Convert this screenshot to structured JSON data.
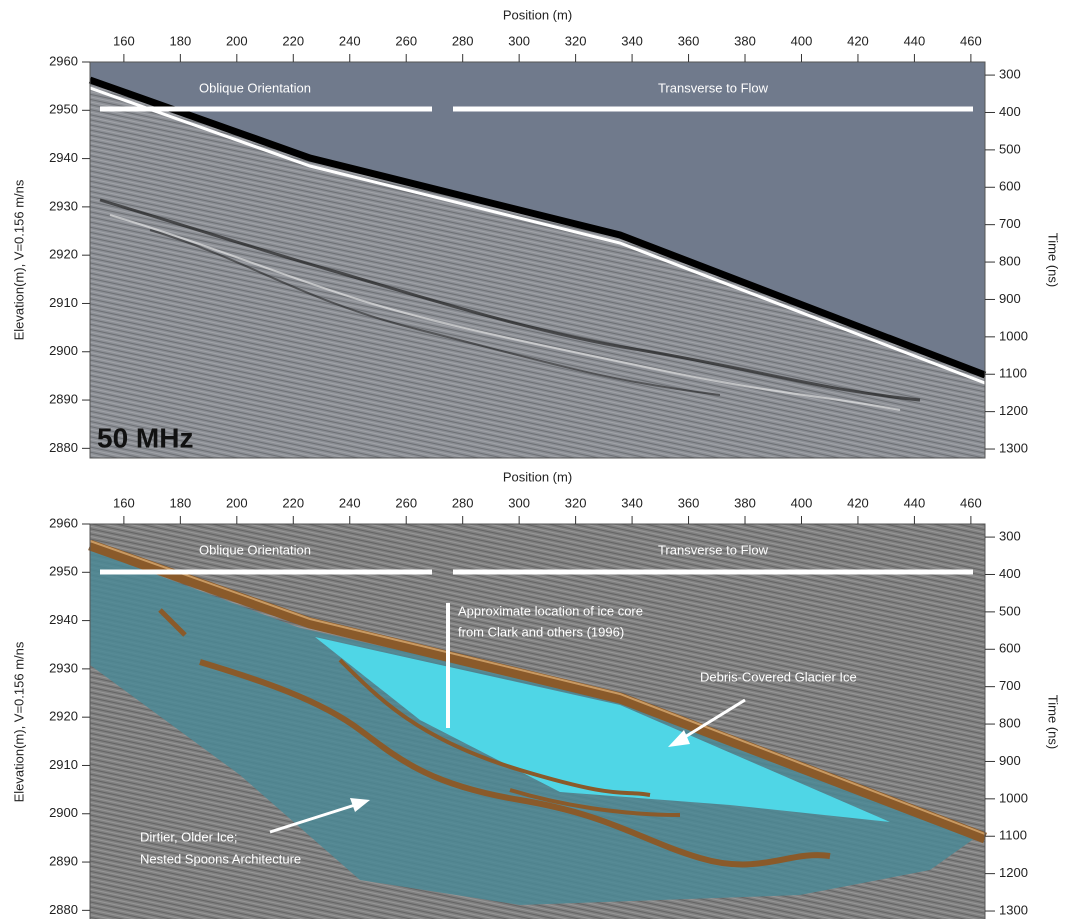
{
  "chart_data": [
    {
      "type": "radargram",
      "xlabel": "Position (m)",
      "ylabel": "Elevation(m), V=0.156 m/ns",
      "y2label": "Time (ns)",
      "xlim": [
        148,
        465
      ],
      "xticks": [
        160,
        180,
        200,
        220,
        240,
        260,
        280,
        300,
        320,
        340,
        360,
        380,
        400,
        420,
        440,
        460
      ],
      "ylim": [
        2878,
        2960
      ],
      "yticks": [
        2880,
        2890,
        2900,
        2910,
        2920,
        2930,
        2940,
        2950,
        2960
      ],
      "y2lim": [
        265,
        1324
      ],
      "y2ticks": [
        300,
        400,
        500,
        600,
        700,
        800,
        900,
        1000,
        1100,
        1200,
        1300
      ],
      "section_labels": [
        "Oblique Orientation",
        "Transverse to Flow"
      ],
      "frequency_label": "50 MHz"
    },
    {
      "type": "radargram",
      "xlabel": "Position (m)",
      "ylabel": "Elevation(m), V=0.156 m/ns",
      "y2label": "Time (ns)",
      "xlim": [
        148,
        465
      ],
      "xticks": [
        160,
        180,
        200,
        220,
        240,
        260,
        280,
        300,
        320,
        340,
        360,
        380,
        400,
        420,
        440,
        460
      ],
      "ylim": [
        2878,
        2960
      ],
      "yticks": [
        2880,
        2890,
        2900,
        2910,
        2920,
        2930,
        2940,
        2950,
        2960
      ],
      "y2lim": [
        265,
        1324
      ],
      "y2ticks": [
        300,
        400,
        500,
        600,
        700,
        800,
        900,
        1000,
        1100,
        1200,
        1300
      ],
      "section_labels": [
        "Oblique Orientation",
        "Transverse to Flow"
      ],
      "annotations": [
        [
          "Approximate location of ice core",
          "from Clark and others (1996)"
        ],
        [
          "Debris-Covered Glacier Ice"
        ],
        [
          "Dirtier, Older Ice;",
          "Nested Spoons Architecture"
        ]
      ]
    }
  ]
}
